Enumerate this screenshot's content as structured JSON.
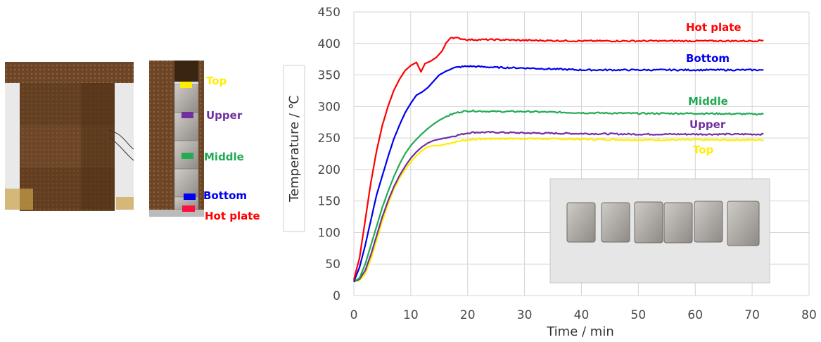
{
  "photo_labels": {
    "top": "Top",
    "upper": "Upper",
    "middle": "Middle",
    "bottom": "Bottom",
    "hot_plate": "Hot plate"
  },
  "colors": {
    "hot_plate": "#ff0000",
    "bottom": "#0000ee",
    "middle": "#22aa55",
    "upper": "#7030a0",
    "top": "#ffee00"
  },
  "chart_data": {
    "type": "line",
    "xlabel": "Time / min",
    "ylabel": "Temperature / ℃",
    "xlim": [
      0,
      80
    ],
    "ylim": [
      0,
      450
    ],
    "xticks": [
      0,
      10,
      20,
      30,
      40,
      50,
      60,
      70,
      80
    ],
    "yticks": [
      0,
      50,
      100,
      150,
      200,
      250,
      300,
      350,
      400,
      450
    ],
    "grid": true,
    "series": [
      {
        "name": "Hot plate",
        "color": "#ff0000",
        "x": [
          0,
          1,
          2,
          3,
          4,
          5,
          6,
          7,
          8,
          9,
          10,
          11,
          11.8,
          12.5,
          13.5,
          14.5,
          15.5,
          16.2,
          17,
          20,
          25,
          30,
          40,
          50,
          60,
          70,
          72
        ],
        "y": [
          25,
          60,
          120,
          180,
          230,
          270,
          300,
          325,
          343,
          357,
          365,
          370,
          355,
          368,
          372,
          378,
          388,
          400,
          410,
          406,
          406,
          405,
          404,
          404,
          404,
          404,
          405
        ]
      },
      {
        "name": "Bottom",
        "color": "#0000ee",
        "x": [
          0,
          1,
          2,
          3,
          4,
          5,
          6,
          7,
          8,
          9,
          10,
          11,
          12,
          13,
          14,
          15,
          16,
          17,
          18,
          19,
          20,
          25,
          30,
          40,
          50,
          60,
          70,
          72
        ],
        "y": [
          22,
          45,
          80,
          120,
          160,
          190,
          220,
          248,
          270,
          290,
          305,
          318,
          323,
          330,
          340,
          350,
          355,
          360,
          362,
          363,
          364,
          362,
          361,
          358,
          358,
          358,
          358,
          358
        ]
      },
      {
        "name": "Middle",
        "color": "#22aa55",
        "x": [
          0,
          1,
          2,
          3,
          4,
          5,
          6,
          7,
          8,
          9,
          10,
          11,
          12,
          13,
          14,
          15,
          16,
          17,
          18,
          19,
          20,
          21,
          25,
          30,
          40,
          50,
          60,
          70,
          72
        ],
        "y": [
          22,
          28,
          50,
          80,
          110,
          140,
          165,
          188,
          208,
          225,
          238,
          248,
          257,
          265,
          272,
          278,
          283,
          287,
          290,
          292,
          293,
          293,
          292,
          292,
          290,
          289,
          289,
          288,
          288
        ]
      },
      {
        "name": "Upper",
        "color": "#7030a0",
        "x": [
          0,
          1,
          2,
          3,
          4,
          5,
          6,
          7,
          8,
          9,
          10,
          11,
          12,
          13,
          14,
          15,
          16,
          17,
          18,
          19,
          20,
          21,
          25,
          30,
          40,
          50,
          60,
          70,
          72
        ],
        "y": [
          22,
          26,
          40,
          65,
          95,
          125,
          150,
          172,
          190,
          205,
          218,
          228,
          236,
          242,
          246,
          248,
          250,
          252,
          254,
          256,
          258,
          259,
          259,
          258,
          257,
          256,
          256,
          256,
          256
        ]
      },
      {
        "name": "Top",
        "color": "#ffee00",
        "x": [
          0,
          1,
          2,
          3,
          4,
          5,
          6,
          7,
          8,
          9,
          10,
          11,
          12,
          13,
          14,
          15,
          16,
          17,
          18,
          19,
          20,
          21,
          25,
          30,
          40,
          50,
          60,
          70,
          72
        ],
        "y": [
          22,
          24,
          35,
          58,
          88,
          118,
          145,
          168,
          186,
          200,
          212,
          222,
          230,
          236,
          238,
          238,
          240,
          242,
          244,
          246,
          247,
          248,
          249,
          249,
          248,
          247,
          247,
          247,
          247
        ]
      }
    ],
    "series_labels": {
      "hot_plate": "Hot plate",
      "bottom": "Bottom",
      "middle": "Middle",
      "upper": "Upper",
      "top": "Top"
    }
  }
}
